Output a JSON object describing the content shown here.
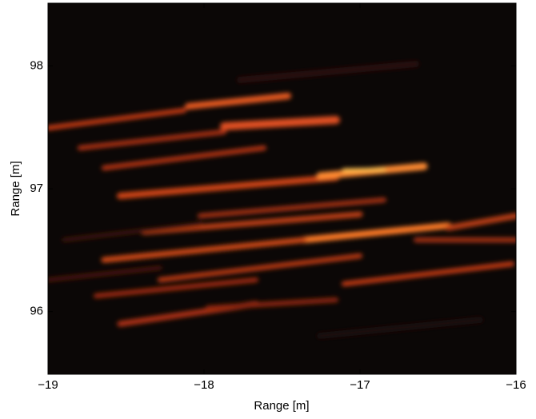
{
  "chart_data": {
    "type": "image",
    "xlabel": "Range [m]",
    "ylabel": "Range [m]",
    "xlim": [
      -19,
      -16
    ],
    "xticks": [
      {
        "value": -19,
        "label": "−19"
      },
      {
        "value": -18,
        "label": "−18"
      },
      {
        "value": -17,
        "label": "−17"
      },
      {
        "value": -16,
        "label": "−16"
      }
    ],
    "ylim": [
      95.49,
      98.51
    ],
    "yticks": [
      96,
      97,
      98
    ]
  }
}
